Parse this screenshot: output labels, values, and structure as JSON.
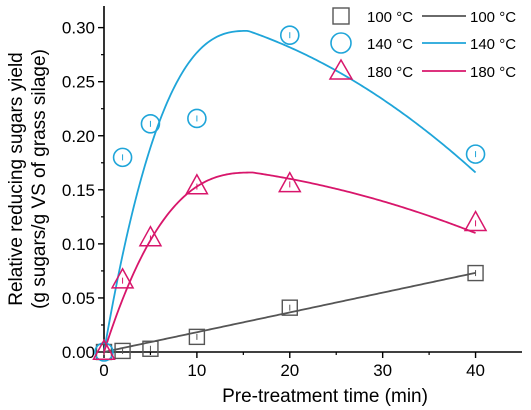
{
  "chart_data": {
    "type": "scatter",
    "title": "",
    "xlabel": "Pre-treatment time (min)",
    "ylabel_line1": "Relative reducing sugars yield",
    "ylabel_line2": "(g sugars/g VS of grass silage)",
    "xlim": [
      0,
      45
    ],
    "ylim": [
      0,
      0.32
    ],
    "xticks": [
      0,
      10,
      20,
      30,
      40
    ],
    "xtick_labels": [
      "0",
      "10",
      "20",
      "30",
      "40"
    ],
    "yticks": [
      0,
      0.05,
      0.1,
      0.15,
      0.2,
      0.25,
      0.3
    ],
    "ytick_labels": [
      "0.00",
      "0.05",
      "0.10",
      "0.15",
      "0.20",
      "0.25",
      "0.30"
    ],
    "legend_position": "top-right",
    "grid": false,
    "series": [
      {
        "name": "100 °C",
        "marker": "square",
        "color": "#555555",
        "points": [
          [
            0,
            0.0
          ],
          [
            2,
            0.001
          ],
          [
            5,
            0.003
          ],
          [
            10,
            0.014
          ],
          [
            20,
            0.041
          ],
          [
            40,
            0.073
          ]
        ],
        "fit": {
          "type": "linear",
          "slope": 0.00183,
          "intercept": 0.0
        }
      },
      {
        "name": "140 °C",
        "marker": "circle",
        "color": "#1fa5d9",
        "points": [
          [
            0,
            0.0
          ],
          [
            2,
            0.18
          ],
          [
            5,
            0.211
          ],
          [
            10,
            0.216
          ],
          [
            20,
            0.293
          ],
          [
            40,
            0.183
          ]
        ],
        "fit": {
          "type": "peak",
          "peak_x": 15.5,
          "peak_y": 0.297,
          "x_end": 40,
          "y_end": 0.166,
          "rise": 0.155
        }
      },
      {
        "name": "180 °C",
        "marker": "triangle",
        "color": "#d8166b",
        "points": [
          [
            0,
            0.0
          ],
          [
            2,
            0.066
          ],
          [
            5,
            0.105
          ],
          [
            10,
            0.153
          ],
          [
            20,
            0.155
          ],
          [
            40,
            0.119
          ]
        ],
        "fit": {
          "type": "peak",
          "peak_x": 16,
          "peak_y": 0.166,
          "x_end": 40,
          "y_end": 0.11,
          "rise": 0.1
        }
      }
    ]
  }
}
